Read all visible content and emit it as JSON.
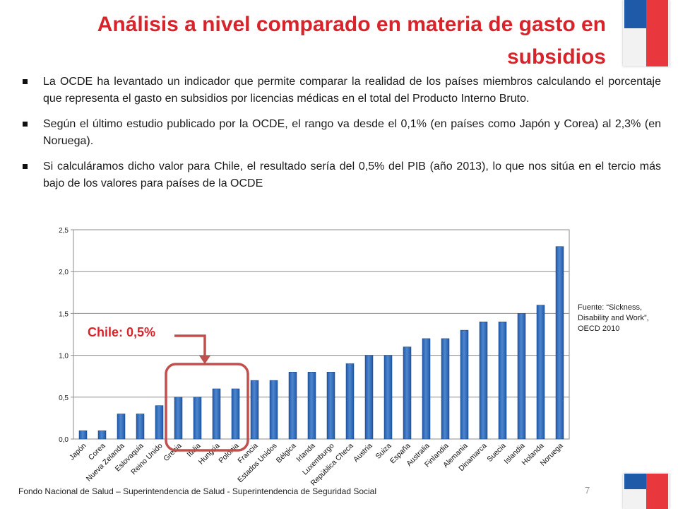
{
  "slide": {
    "title_line1": "Análisis a nivel comparado en materia de gasto en",
    "title_line2": "subsidios",
    "bullets": [
      "La OCDE ha levantado un indicador que permite comparar la realidad de los países miembros calculando el porcentaje que representa el gasto en subsidios  por licencias médicas en el total del Producto Interno Bruto.",
      "Según el último estudio publicado por la OCDE, el rango va desde el 0,1% (en países como Japón y Corea) al 2,3% (en Noruega).",
      "Si calculáramos dicho valor para Chile, el resultado sería del 0,5% del PIB (año 2013), lo que nos sitúa en el tercio más bajo de los valores para países de la OCDE"
    ],
    "source_note": "Fuente: “Sickness, Disability and Work”, OECD 2010",
    "callout": "Chile: 0,5%",
    "footer": "Fondo Nacional de Salud – Superintendencia de Salud - Superintendencia de Seguridad Social",
    "page_number": "7"
  },
  "colors": {
    "title": "#d8232a",
    "bar": "#1f5aa8",
    "bar_light": "#4f86cf",
    "highlight": "#c0504d",
    "flag_blue": "#1f5aa8",
    "flag_red": "#e8383d"
  },
  "chart_data": {
    "type": "bar",
    "categories": [
      "Japón",
      "Corea",
      "Nueva Zelanda",
      "Eslovaquia",
      "Reino Unido",
      "Grecia",
      "Italia",
      "Hungría",
      "Polonia",
      "Francia",
      "Estados Unidos",
      "Bélgica",
      "Irlanda",
      "Luxemburgo",
      "República Checa",
      "Austria",
      "Suiza",
      "España",
      "Australia",
      "Finlandia",
      "Alemania",
      "Dinamarca",
      "Suecia",
      "Islandia",
      "Holanda",
      "Noruega"
    ],
    "values": [
      0.1,
      0.1,
      0.3,
      0.3,
      0.4,
      0.5,
      0.5,
      0.6,
      0.6,
      0.7,
      0.7,
      0.8,
      0.8,
      0.8,
      0.9,
      1.0,
      1.0,
      1.1,
      1.2,
      1.2,
      1.3,
      1.4,
      1.4,
      1.5,
      1.6,
      2.3
    ],
    "ylim": [
      0,
      2.5
    ],
    "yticks": [
      "0,0",
      "0,5",
      "1,0",
      "1,5",
      "2,0",
      "2,5"
    ],
    "grid": true,
    "highlight_categories": [
      "Grecia",
      "Italia",
      "Hungría",
      "Polonia"
    ]
  }
}
